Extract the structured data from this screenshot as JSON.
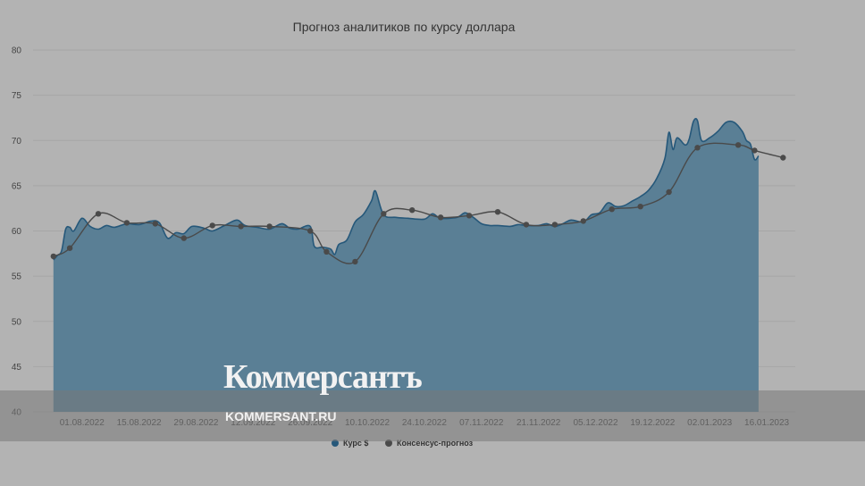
{
  "chart_data": {
    "type": "area",
    "title": "Прогноз аналитиков по курсу доллара",
    "ylim": [
      40,
      80
    ],
    "y_ticks": [
      "80",
      "75",
      "70",
      "65",
      "60",
      "55",
      "50",
      "45",
      "40"
    ],
    "x_ticks": [
      "01.08.2022",
      "15.08.2022",
      "29.08.2022",
      "12.09.2022",
      "26.09.2022",
      "10.10.2022",
      "24.10.2022",
      "07.11.2022",
      "21.11.2022",
      "05.12.2022",
      "19.12.2022",
      "02.01.2023",
      "16.01.2023"
    ],
    "series": [
      {
        "name": "Курс $",
        "color": "#26587a",
        "points": [
          [
            "2022-07-25",
            56.8
          ],
          [
            "2022-07-26",
            57.3
          ],
          [
            "2022-07-27",
            57.8
          ],
          [
            "2022-07-28",
            60.2
          ],
          [
            "2022-07-29",
            60.4
          ],
          [
            "2022-07-30",
            60.0
          ],
          [
            "2022-08-01",
            61.4
          ],
          [
            "2022-08-03",
            60.5
          ],
          [
            "2022-08-05",
            60.2
          ],
          [
            "2022-08-07",
            60.6
          ],
          [
            "2022-08-09",
            60.4
          ],
          [
            "2022-08-12",
            60.8
          ],
          [
            "2022-08-15",
            60.7
          ],
          [
            "2022-08-18",
            61.1
          ],
          [
            "2022-08-20",
            60.9
          ],
          [
            "2022-08-22",
            59.2
          ],
          [
            "2022-08-24",
            59.8
          ],
          [
            "2022-08-26",
            59.7
          ],
          [
            "2022-08-28",
            60.5
          ],
          [
            "2022-08-31",
            60.3
          ],
          [
            "2022-09-02",
            60.0
          ],
          [
            "2022-09-05",
            60.6
          ],
          [
            "2022-09-08",
            61.2
          ],
          [
            "2022-09-10",
            60.6
          ],
          [
            "2022-09-13",
            60.4
          ],
          [
            "2022-09-16",
            60.2
          ],
          [
            "2022-09-19",
            60.8
          ],
          [
            "2022-09-21",
            60.3
          ],
          [
            "2022-09-23",
            60.2
          ],
          [
            "2022-09-26",
            60.5
          ],
          [
            "2022-09-27",
            58.3
          ],
          [
            "2022-09-29",
            58.2
          ],
          [
            "2022-10-01",
            58.0
          ],
          [
            "2022-10-02",
            57.4
          ],
          [
            "2022-10-03",
            58.5
          ],
          [
            "2022-10-05",
            59.0
          ],
          [
            "2022-10-07",
            61.0
          ],
          [
            "2022-10-09",
            61.8
          ],
          [
            "2022-10-11",
            63.3
          ],
          [
            "2022-10-12",
            64.4
          ],
          [
            "2022-10-14",
            61.8
          ],
          [
            "2022-10-17",
            61.5
          ],
          [
            "2022-10-20",
            61.4
          ],
          [
            "2022-10-24",
            61.3
          ],
          [
            "2022-10-26",
            61.9
          ],
          [
            "2022-10-28",
            61.4
          ],
          [
            "2022-11-01",
            61.5
          ],
          [
            "2022-11-03",
            62.0
          ],
          [
            "2022-11-05",
            61.5
          ],
          [
            "2022-11-07",
            60.8
          ],
          [
            "2022-11-09",
            60.6
          ],
          [
            "2022-11-11",
            60.6
          ],
          [
            "2022-11-14",
            60.5
          ],
          [
            "2022-11-16",
            60.7
          ],
          [
            "2022-11-18",
            60.6
          ],
          [
            "2022-11-21",
            60.6
          ],
          [
            "2022-11-23",
            60.8
          ],
          [
            "2022-11-25",
            60.5
          ],
          [
            "2022-11-27",
            60.8
          ],
          [
            "2022-11-29",
            61.2
          ],
          [
            "2022-12-02",
            61.0
          ],
          [
            "2022-12-04",
            61.8
          ],
          [
            "2022-12-06",
            62.0
          ],
          [
            "2022-12-08",
            63.1
          ],
          [
            "2022-12-10",
            62.7
          ],
          [
            "2022-12-12",
            62.8
          ],
          [
            "2022-12-14",
            63.3
          ],
          [
            "2022-12-16",
            63.8
          ],
          [
            "2022-12-18",
            64.5
          ],
          [
            "2022-12-20",
            65.8
          ],
          [
            "2022-12-22",
            68.0
          ],
          [
            "2022-12-23",
            70.9
          ],
          [
            "2022-12-24",
            69.0
          ],
          [
            "2022-12-25",
            70.3
          ],
          [
            "2022-12-27",
            69.5
          ],
          [
            "2022-12-28",
            70.2
          ],
          [
            "2022-12-29",
            72.1
          ],
          [
            "2022-12-30",
            72.2
          ],
          [
            "2022-12-31",
            70.0
          ],
          [
            "2023-01-02",
            70.3
          ],
          [
            "2023-01-04",
            71.0
          ],
          [
            "2023-01-06",
            72.0
          ],
          [
            "2023-01-08",
            72.0
          ],
          [
            "2023-01-10",
            71.0
          ],
          [
            "2023-01-11",
            70.0
          ],
          [
            "2023-01-12",
            69.6
          ],
          [
            "2023-01-13",
            67.9
          ],
          [
            "2023-01-14",
            68.3
          ]
        ]
      },
      {
        "name": "Консенсус-прогноз",
        "color": "#4a4a4a",
        "points": [
          [
            "2022-07-25",
            57.2
          ],
          [
            "2022-07-29",
            58.1
          ],
          [
            "2022-08-05",
            61.9
          ],
          [
            "2022-08-12",
            60.9
          ],
          [
            "2022-08-19",
            60.8
          ],
          [
            "2022-08-26",
            59.2
          ],
          [
            "2022-09-02",
            60.6
          ],
          [
            "2022-09-09",
            60.5
          ],
          [
            "2022-09-16",
            60.5
          ],
          [
            "2022-09-26",
            60.0
          ],
          [
            "2022-09-30",
            57.7
          ],
          [
            "2022-10-07",
            56.6
          ],
          [
            "2022-10-14",
            61.9
          ],
          [
            "2022-10-21",
            62.3
          ],
          [
            "2022-10-28",
            61.5
          ],
          [
            "2022-11-04",
            61.7
          ],
          [
            "2022-11-11",
            62.1
          ],
          [
            "2022-11-18",
            60.7
          ],
          [
            "2022-11-25",
            60.7
          ],
          [
            "2022-12-02",
            61.1
          ],
          [
            "2022-12-09",
            62.4
          ],
          [
            "2022-12-16",
            62.7
          ],
          [
            "2022-12-23",
            64.3
          ],
          [
            "2022-12-30",
            69.2
          ],
          [
            "2023-01-09",
            69.5
          ],
          [
            "2023-01-13",
            68.9
          ],
          [
            "2023-01-20",
            68.1
          ]
        ]
      }
    ],
    "legend_position": "bottom-center"
  },
  "watermark": {
    "brand": "Коммерсантъ",
    "url": "KOMMERSANT.RU"
  }
}
